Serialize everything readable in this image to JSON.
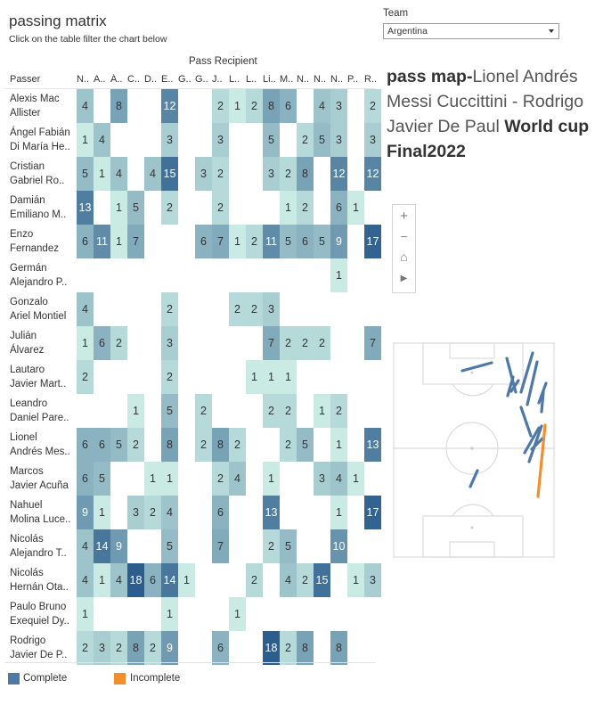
{
  "header": {
    "title": "passing matrix",
    "subtitle": "Click on the table filter the chart below"
  },
  "team_filter": {
    "label": "Team",
    "selected": "Argentina"
  },
  "matrix": {
    "column_group_label": "Pass Recipient",
    "row_header": "Passer",
    "columns": [
      "N..",
      "A..",
      "Á..",
      "C..",
      "D..",
      "E..",
      "G..",
      "G..",
      "J..",
      "L..",
      "L..",
      "Li..",
      "M..",
      "N..",
      "N..",
      "N..",
      "P..",
      "R.."
    ],
    "rows": [
      {
        "line1": "Alexis Mac",
        "line2": "Allister",
        "values": [
          4,
          null,
          8,
          null,
          null,
          12,
          null,
          null,
          2,
          1,
          2,
          8,
          6,
          null,
          4,
          3,
          null,
          2
        ]
      },
      {
        "line1": "Ángel Fabián",
        "line2": "Di María He..",
        "values": [
          1,
          4,
          null,
          null,
          null,
          3,
          null,
          null,
          3,
          null,
          null,
          5,
          null,
          2,
          5,
          3,
          null,
          3
        ]
      },
      {
        "line1": "Cristian",
        "line2": "Gabriel Ro..",
        "values": [
          5,
          1,
          4,
          null,
          4,
          15,
          null,
          3,
          2,
          null,
          null,
          3,
          2,
          8,
          null,
          12,
          null,
          12
        ]
      },
      {
        "line1": "Damián",
        "line2": "Emiliano M..",
        "values": [
          13,
          null,
          1,
          5,
          null,
          2,
          null,
          null,
          2,
          null,
          null,
          null,
          1,
          2,
          null,
          6,
          1,
          null
        ]
      },
      {
        "line1": "Enzo",
        "line2": "Fernandez",
        "values": [
          6,
          11,
          1,
          7,
          null,
          null,
          null,
          6,
          7,
          1,
          2,
          11,
          5,
          6,
          5,
          9,
          null,
          17
        ]
      },
      {
        "line1": "Germán",
        "line2": "Alejandro P..",
        "values": [
          null,
          null,
          null,
          null,
          null,
          null,
          null,
          null,
          null,
          null,
          null,
          null,
          null,
          null,
          null,
          1,
          null,
          null
        ]
      },
      {
        "line1": "Gonzalo",
        "line2": "Ariel Montiel",
        "values": [
          4,
          null,
          null,
          null,
          null,
          2,
          null,
          null,
          null,
          2,
          2,
          3,
          null,
          null,
          null,
          null,
          null,
          null
        ]
      },
      {
        "line1": "Julián",
        "line2": "Álvarez",
        "values": [
          1,
          6,
          2,
          null,
          null,
          3,
          null,
          null,
          null,
          null,
          null,
          7,
          2,
          2,
          2,
          null,
          null,
          7
        ]
      },
      {
        "line1": "Lautaro",
        "line2": "Javier Mart..",
        "values": [
          2,
          null,
          null,
          null,
          null,
          2,
          null,
          null,
          null,
          null,
          1,
          1,
          1,
          null,
          null,
          null,
          null,
          null
        ]
      },
      {
        "line1": "Leandro",
        "line2": "Daniel Pare..",
        "values": [
          null,
          null,
          null,
          1,
          null,
          5,
          null,
          2,
          null,
          null,
          null,
          2,
          2,
          null,
          1,
          2,
          null,
          null
        ]
      },
      {
        "line1": "Lionel",
        "line2": "Andrés Mes..",
        "values": [
          6,
          6,
          5,
          2,
          null,
          8,
          null,
          2,
          8,
          2,
          null,
          null,
          2,
          5,
          null,
          1,
          null,
          13
        ]
      },
      {
        "line1": "Marcos",
        "line2": "Javier Acuña",
        "values": [
          6,
          5,
          null,
          null,
          1,
          1,
          null,
          null,
          2,
          4,
          null,
          1,
          null,
          null,
          3,
          4,
          1,
          null
        ]
      },
      {
        "line1": "Nahuel",
        "line2": "Molina Luce..",
        "values": [
          9,
          1,
          null,
          3,
          2,
          4,
          null,
          null,
          6,
          null,
          null,
          13,
          null,
          null,
          null,
          1,
          null,
          17
        ]
      },
      {
        "line1": "Nicolás",
        "line2": "Alejandro T..",
        "values": [
          4,
          14,
          9,
          null,
          null,
          5,
          null,
          null,
          7,
          null,
          null,
          2,
          5,
          null,
          null,
          10,
          null,
          null
        ]
      },
      {
        "line1": "Nicolás",
        "line2": "Hernán Ota..",
        "values": [
          4,
          1,
          4,
          18,
          6,
          14,
          1,
          null,
          null,
          null,
          2,
          null,
          4,
          2,
          15,
          null,
          1,
          3
        ]
      },
      {
        "line1": "Paulo Bruno",
        "line2": "Exequiel Dy..",
        "values": [
          1,
          null,
          null,
          null,
          null,
          1,
          null,
          null,
          null,
          1,
          null,
          null,
          null,
          null,
          null,
          null,
          null,
          null
        ]
      },
      {
        "line1": "Rodrigo",
        "line2": "Javier De P..",
        "values": [
          2,
          3,
          2,
          8,
          2,
          9,
          null,
          null,
          6,
          null,
          null,
          18,
          2,
          8,
          null,
          8,
          null,
          null
        ]
      }
    ]
  },
  "pass_map": {
    "title_bold_1": "pass map-",
    "title_rest": "Lionel Andrés Messi Cuccittini - Rodrigo Javier De Paul",
    "title_bold_2": "World cup Final2022",
    "zoom_controls": {
      "zoom_in": "+",
      "zoom_out": "−",
      "home": "⌂",
      "play": "▶"
    },
    "colors": {
      "complete": "#4e79a7",
      "incomplete": "#f28e2b",
      "pitch_lines": "#dcdcdc"
    }
  },
  "legend": [
    {
      "label": "Complete",
      "color": "#4e79a7"
    },
    {
      "label": "Incomplete",
      "color": "#f28e2b"
    }
  ],
  "color_scale": {
    "low": "#c9ebe3",
    "high": "#2c5d8c",
    "min": 1,
    "max": 18
  }
}
